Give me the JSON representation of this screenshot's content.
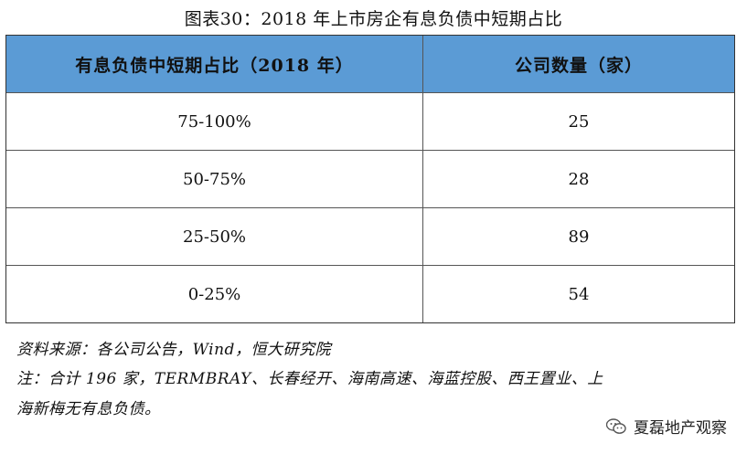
{
  "title": "图表30：2018 年上市房企有息负债中短期占比",
  "table": {
    "headers": [
      "有息负债中短期占比（2018 年）",
      "公司数量（家）"
    ],
    "rows": [
      [
        "75-100%",
        "25"
      ],
      [
        "50-75%",
        "28"
      ],
      [
        "25-50%",
        "89"
      ],
      [
        "0-25%",
        "54"
      ]
    ],
    "header_color": "#5b9bd5"
  },
  "notes": {
    "source": "资料来源：各公司公告，Wind，恒大研究院",
    "line1": "注：合计 196 家，TERMBRAY、长春经开、海南高速、海蓝控股、西王置业、上",
    "line2": "海新梅无有息负债。"
  },
  "watermark": {
    "label": "夏磊地产观察",
    "icon": "wechat-icon"
  }
}
